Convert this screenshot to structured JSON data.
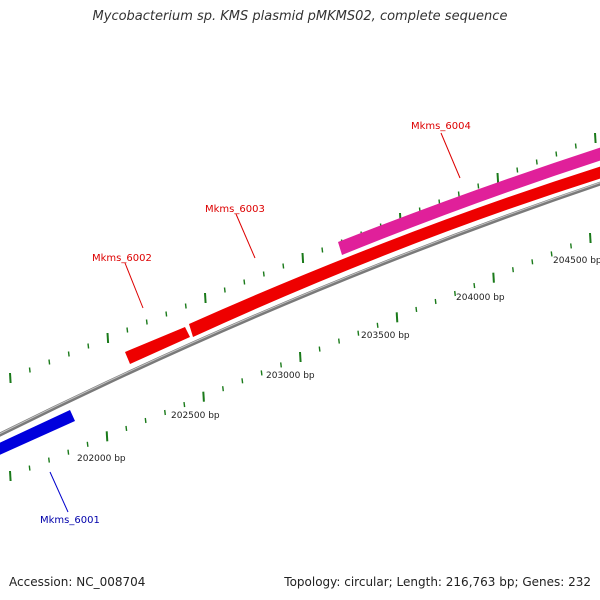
{
  "title": "Mycobacterium sp. KMS plasmid pMKMS02, complete sequence",
  "accession": "Accession: NC_008704",
  "summary": "Topology: circular; Length: 216,763 bp; Genes: 232",
  "colors": {
    "backbone": "#8a8a8a",
    "tick": "#1a7a1a",
    "label_line_red": "#dd0000",
    "label_line_blue": "#0000cc"
  },
  "scale_labels": [
    "202000 bp",
    "202500 bp",
    "203000 bp",
    "203500 bp",
    "204000 bp",
    "204500 bp"
  ],
  "genes": [
    {
      "name": "Mkms_6001",
      "color": "#0000dd",
      "label_color": "#0000aa"
    },
    {
      "name": "Mkms_6002",
      "color": "#ee0000",
      "label_color": "#dd0000"
    },
    {
      "name": "Mkms_6003",
      "color": "#ee0000",
      "label_color": "#dd0000"
    },
    {
      "name": "Mkms_6004",
      "color": "#e0209a",
      "label_color": "#dd0000"
    }
  ]
}
